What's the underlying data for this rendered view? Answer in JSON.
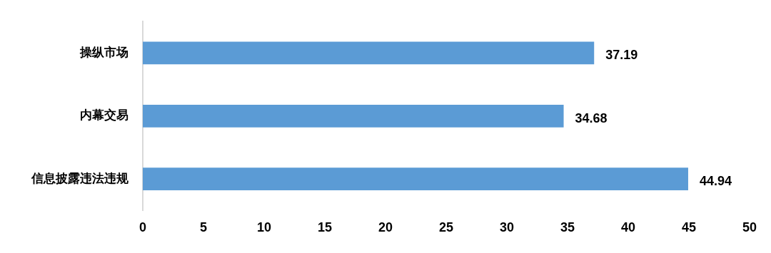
{
  "chart_data": {
    "type": "bar",
    "orientation": "horizontal",
    "categories": [
      "操纵市场",
      "内幕交易",
      "信息披露违法违规"
    ],
    "values": [
      37.19,
      34.68,
      44.94
    ],
    "color": "#5b9bd5",
    "xlim": [
      0,
      50
    ],
    "xticks": [
      0,
      5,
      10,
      15,
      20,
      25,
      30,
      35,
      40,
      45,
      50
    ],
    "grid": false,
    "legend": false,
    "data_labels": true
  }
}
